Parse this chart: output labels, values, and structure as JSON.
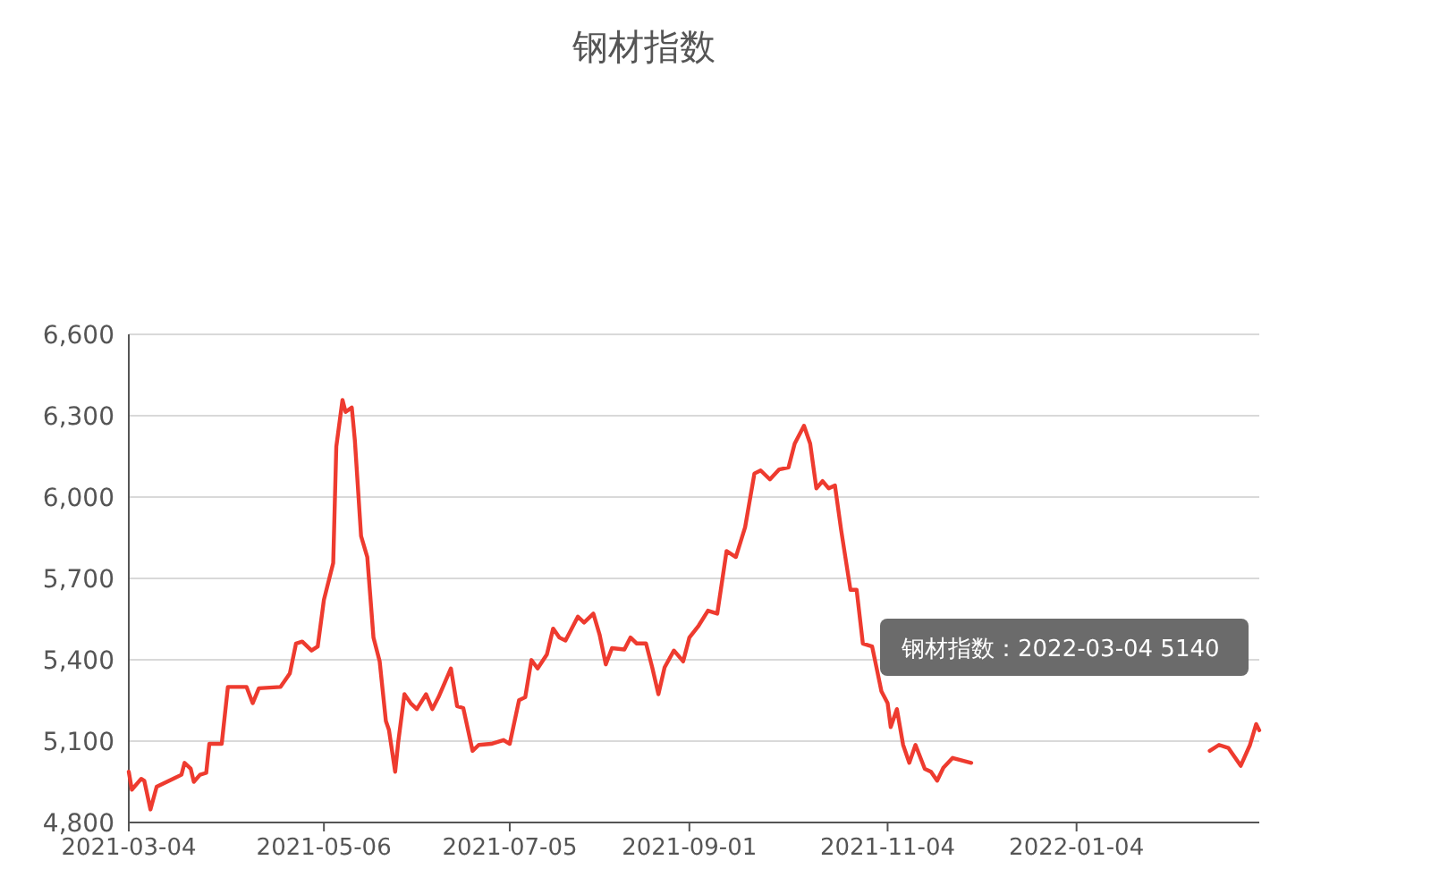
{
  "chart_data": {
    "type": "line",
    "title": "钢材指数",
    "x": [
      "2021-03-04",
      "2021-03-05",
      "2021-03-08",
      "2021-03-09",
      "2021-03-11",
      "2021-03-13",
      "2021-03-19",
      "2021-03-21",
      "2021-03-22",
      "2021-03-24",
      "2021-03-25",
      "2021-03-27",
      "2021-03-29",
      "2021-03-30",
      "2021-04-03",
      "2021-04-05",
      "2021-04-11",
      "2021-04-13",
      "2021-04-15",
      "2021-04-22",
      "2021-04-25",
      "2021-04-27",
      "2021-04-29",
      "2021-05-02",
      "2021-05-04",
      "2021-05-06",
      "2021-05-09",
      "2021-05-10",
      "2021-05-12",
      "2021-05-13",
      "2021-05-15",
      "2021-05-16",
      "2021-05-18",
      "2021-05-20",
      "2021-05-22",
      "2021-05-24",
      "2021-05-26",
      "2021-05-27",
      "2021-05-29",
      "2021-05-30",
      "2021-06-01",
      "2021-06-03",
      "2021-06-05",
      "2021-06-08",
      "2021-06-10",
      "2021-06-12",
      "2021-06-16",
      "2021-06-18",
      "2021-06-20",
      "2021-06-23",
      "2021-06-25",
      "2021-06-29",
      "2021-07-03",
      "2021-07-05",
      "2021-07-08",
      "2021-07-10",
      "2021-07-12",
      "2021-07-14",
      "2021-07-17",
      "2021-07-19",
      "2021-07-21",
      "2021-07-23",
      "2021-07-27",
      "2021-07-29",
      "2021-08-01",
      "2021-08-03",
      "2021-08-05",
      "2021-08-07",
      "2021-08-11",
      "2021-08-13",
      "2021-08-15",
      "2021-08-18",
      "2021-08-20",
      "2021-08-22",
      "2021-08-24",
      "2021-08-27",
      "2021-08-30",
      "2021-09-01",
      "2021-09-04",
      "2021-09-07",
      "2021-09-10",
      "2021-09-13",
      "2021-09-16",
      "2021-09-19",
      "2021-09-22",
      "2021-09-24",
      "2021-09-27",
      "2021-09-30",
      "2021-10-03",
      "2021-10-05",
      "2021-10-08",
      "2021-10-10",
      "2021-10-12",
      "2021-10-14",
      "2021-10-16",
      "2021-10-18",
      "2021-10-20",
      "2021-10-23",
      "2021-10-25",
      "2021-10-27",
      "2021-10-30",
      "2021-11-02",
      "2021-11-04",
      "2021-11-05",
      "2021-11-07",
      "2021-11-09",
      "2021-11-11",
      "2021-11-13",
      "2021-11-16",
      "2021-11-18",
      "2021-11-20",
      "2021-11-22",
      "2021-11-25",
      "2021-12-01",
      "2022-01-08",
      "2022-02-16",
      "2022-02-19",
      "2022-02-22",
      "2022-02-26",
      "2022-03-01",
      "2022-03-03",
      "2022-03-04"
    ],
    "series": [
      {
        "color": "#ee3b2f",
        "values": [
          4987,
          4921,
          4961,
          4954,
          4848,
          4932,
          4965,
          4976,
          5020,
          4998,
          4950,
          4976,
          4983,
          5090,
          5090,
          5300,
          5300,
          5240,
          5295,
          5300,
          5350,
          5460,
          5467,
          5434,
          5449,
          5621,
          5757,
          6186,
          6358,
          6314,
          6330,
          6208,
          5856,
          5779,
          5482,
          5394,
          5174,
          5141,
          4987,
          5097,
          5273,
          5240,
          5218,
          5273,
          5218,
          5262,
          5368,
          5229,
          5222,
          5064,
          5086,
          5090,
          5104,
          5090,
          5251,
          5262,
          5399,
          5368,
          5420,
          5515,
          5482,
          5471,
          5559,
          5537,
          5570,
          5493,
          5383,
          5443,
          5438,
          5482,
          5460,
          5460,
          5372,
          5273,
          5372,
          5434,
          5394,
          5482,
          5526,
          5581,
          5570,
          5801,
          5779,
          5889,
          6087,
          6098,
          6065,
          6102,
          6109,
          6197,
          6263,
          6197,
          6032,
          6059,
          6032,
          6043,
          5878,
          5658,
          5658,
          5460,
          5449,
          5284,
          5240,
          5152,
          5218,
          5086,
          5020,
          5086,
          4998,
          4987,
          4954,
          5002,
          5038,
          5020,
          null,
          5064,
          5086,
          5075,
          5009,
          5086,
          5163,
          5140
        ]
      }
    ],
    "xlim": [
      "2021-03-04",
      "2022-03-04"
    ],
    "xticks": [
      "2021-03-04",
      "2021-05-06",
      "2021-07-05",
      "2021-09-01",
      "2021-11-04",
      "2022-01-04"
    ],
    "ylim": [
      4800,
      6600
    ],
    "yticks": [
      {
        "value": 4800,
        "label": "4,800"
      },
      {
        "value": 5100,
        "label": "5,100"
      },
      {
        "value": 5400,
        "label": "5,400"
      },
      {
        "value": 5700,
        "label": "5,700"
      },
      {
        "value": 6000,
        "label": "6,000"
      },
      {
        "value": 6300,
        "label": "6,300"
      },
      {
        "value": 6600,
        "label": "6,600"
      }
    ],
    "grid": "y",
    "marker": "none",
    "line_style": "solid",
    "annotations": [
      "钢材指数：2022-03-04 5140"
    ]
  }
}
